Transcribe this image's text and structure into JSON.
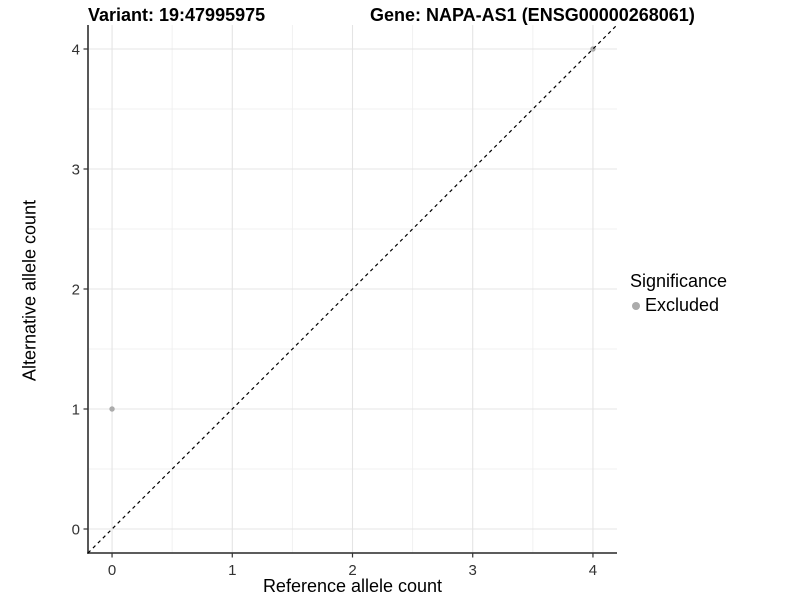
{
  "chart_data": {
    "type": "scatter",
    "title_left": "Variant: 19:47995975",
    "title_right": "Gene: NAPA-AS1 (ENSG00000268061)",
    "xlabel": "Reference allele count",
    "ylabel": "Alternative allele count",
    "xlim": [
      -0.2,
      4.2
    ],
    "ylim": [
      -0.2,
      4.2
    ],
    "x_ticks": [
      0,
      1,
      2,
      3,
      4
    ],
    "y_ticks": [
      0,
      1,
      2,
      3,
      4
    ],
    "grid": "major+minor",
    "points": [
      {
        "x": 0,
        "y": 1,
        "significance": "Excluded"
      },
      {
        "x": 4,
        "y": 4,
        "significance": "Excluded"
      }
    ],
    "reference_line": {
      "slope": 1,
      "intercept": 0,
      "style": "dashed"
    },
    "legend": {
      "title": "Significance",
      "position": "right",
      "items": [
        {
          "label": "Excluded",
          "color": "#ababab"
        }
      ]
    }
  },
  "colors": {
    "background": "#ffffff",
    "grid_major": "#e4e4e4",
    "grid_minor": "#f0f0f0",
    "axis_line": "#454545",
    "tick": "#333333",
    "tick_label": "#333333",
    "point": "#ababab",
    "reference_line": "#000000",
    "text": "#000000"
  }
}
